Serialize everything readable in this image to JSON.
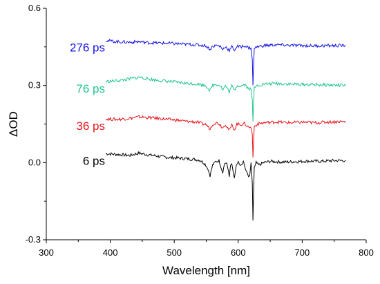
{
  "chart_data": {
    "type": "line",
    "title": "",
    "xlabel": "Wavelength [nm]",
    "ylabel": "ΔOD",
    "xlim": [
      300,
      800
    ],
    "ylim": [
      -0.3,
      0.6
    ],
    "x_ticks": [
      300,
      400,
      500,
      600,
      700,
      800
    ],
    "x_tick_labels": [
      "300",
      "400",
      "500",
      "600",
      "700",
      "800"
    ],
    "y_ticks": [
      -0.3,
      0.0,
      0.3,
      0.6
    ],
    "y_tick_labels": [
      "-0.3",
      "0.0",
      "0.3",
      "0.6"
    ],
    "grid": false,
    "legend": "inline labels at left of each trace",
    "series": [
      {
        "name": "6 ps",
        "color": "#000000",
        "points": [
          [
            393,
            0.035
          ],
          [
            410,
            0.032
          ],
          [
            430,
            0.028
          ],
          [
            445,
            0.037
          ],
          [
            460,
            0.03
          ],
          [
            475,
            0.025
          ],
          [
            490,
            0.02
          ],
          [
            505,
            0.018
          ],
          [
            520,
            0.015
          ],
          [
            530,
            0.013
          ],
          [
            540,
            0.01
          ],
          [
            548,
            -0.005
          ],
          [
            552,
            -0.02
          ],
          [
            556,
            -0.05
          ],
          [
            560,
            -0.01
          ],
          [
            565,
            0.004
          ],
          [
            570,
            0.008
          ],
          [
            576,
            -0.04
          ],
          [
            578,
            -0.005
          ],
          [
            582,
            0.0
          ],
          [
            586,
            -0.055
          ],
          [
            588,
            -0.01
          ],
          [
            590,
            -0.005
          ],
          [
            594,
            -0.06
          ],
          [
            597,
            -0.01
          ],
          [
            600,
            0.0
          ],
          [
            604,
            -0.015
          ],
          [
            608,
            0.0
          ],
          [
            612,
            -0.03
          ],
          [
            616,
            -0.055
          ],
          [
            618,
            -0.05
          ],
          [
            620,
            0.0
          ],
          [
            622,
            -0.08
          ],
          [
            623,
            -0.225
          ],
          [
            625,
            -0.02
          ],
          [
            628,
            0.0
          ],
          [
            632,
            -0.01
          ],
          [
            640,
            0.0
          ],
          [
            650,
            0.005
          ],
          [
            670,
            0.002
          ],
          [
            690,
            0.004
          ],
          [
            710,
            0.006
          ],
          [
            730,
            0.005
          ],
          [
            750,
            0.008
          ],
          [
            768,
            0.008
          ]
        ]
      },
      {
        "name": "36 ps",
        "color": "#e8141b",
        "points": [
          [
            393,
            0.17
          ],
          [
            410,
            0.168
          ],
          [
            430,
            0.172
          ],
          [
            445,
            0.178
          ],
          [
            460,
            0.175
          ],
          [
            475,
            0.172
          ],
          [
            490,
            0.168
          ],
          [
            505,
            0.165
          ],
          [
            520,
            0.16
          ],
          [
            535,
            0.158
          ],
          [
            545,
            0.15
          ],
          [
            550,
            0.148
          ],
          [
            556,
            0.13
          ],
          [
            560,
            0.15
          ],
          [
            565,
            0.155
          ],
          [
            570,
            0.152
          ],
          [
            576,
            0.135
          ],
          [
            580,
            0.15
          ],
          [
            586,
            0.125
          ],
          [
            590,
            0.145
          ],
          [
            594,
            0.128
          ],
          [
            598,
            0.15
          ],
          [
            604,
            0.148
          ],
          [
            610,
            0.152
          ],
          [
            615,
            0.14
          ],
          [
            620,
            0.135
          ],
          [
            622,
            0.11
          ],
          [
            623,
            0.02
          ],
          [
            625,
            0.14
          ],
          [
            630,
            0.15
          ],
          [
            640,
            0.155
          ],
          [
            660,
            0.158
          ],
          [
            680,
            0.155
          ],
          [
            700,
            0.157
          ],
          [
            720,
            0.155
          ],
          [
            740,
            0.158
          ],
          [
            768,
            0.16
          ]
        ]
      },
      {
        "name": "76 ps",
        "color": "#1ec58d",
        "points": [
          [
            393,
            0.315
          ],
          [
            410,
            0.318
          ],
          [
            430,
            0.325
          ],
          [
            445,
            0.332
          ],
          [
            460,
            0.325
          ],
          [
            475,
            0.32
          ],
          [
            490,
            0.316
          ],
          [
            505,
            0.312
          ],
          [
            520,
            0.308
          ],
          [
            535,
            0.306
          ],
          [
            545,
            0.302
          ],
          [
            550,
            0.298
          ],
          [
            556,
            0.28
          ],
          [
            560,
            0.3
          ],
          [
            566,
            0.305
          ],
          [
            572,
            0.3
          ],
          [
            576,
            0.282
          ],
          [
            580,
            0.3
          ],
          [
            586,
            0.275
          ],
          [
            590,
            0.298
          ],
          [
            594,
            0.28
          ],
          [
            598,
            0.3
          ],
          [
            604,
            0.298
          ],
          [
            610,
            0.305
          ],
          [
            615,
            0.29
          ],
          [
            620,
            0.285
          ],
          [
            622,
            0.245
          ],
          [
            623,
            0.16
          ],
          [
            625,
            0.29
          ],
          [
            630,
            0.3
          ],
          [
            640,
            0.305
          ],
          [
            660,
            0.308
          ],
          [
            680,
            0.305
          ],
          [
            700,
            0.304
          ],
          [
            720,
            0.303
          ],
          [
            740,
            0.302
          ],
          [
            768,
            0.3
          ]
        ]
      },
      {
        "name": "276 ps",
        "color": "#1414e6",
        "points": [
          [
            393,
            0.475
          ],
          [
            410,
            0.47
          ],
          [
            430,
            0.468
          ],
          [
            445,
            0.47
          ],
          [
            460,
            0.466
          ],
          [
            475,
            0.465
          ],
          [
            490,
            0.464
          ],
          [
            505,
            0.462
          ],
          [
            520,
            0.46
          ],
          [
            535,
            0.458
          ],
          [
            545,
            0.456
          ],
          [
            550,
            0.454
          ],
          [
            556,
            0.44
          ],
          [
            560,
            0.452
          ],
          [
            566,
            0.456
          ],
          [
            572,
            0.452
          ],
          [
            576,
            0.44
          ],
          [
            580,
            0.452
          ],
          [
            586,
            0.435
          ],
          [
            590,
            0.45
          ],
          [
            594,
            0.438
          ],
          [
            598,
            0.452
          ],
          [
            604,
            0.45
          ],
          [
            610,
            0.455
          ],
          [
            615,
            0.448
          ],
          [
            620,
            0.445
          ],
          [
            622,
            0.4
          ],
          [
            623,
            0.3
          ],
          [
            625,
            0.445
          ],
          [
            630,
            0.45
          ],
          [
            640,
            0.455
          ],
          [
            660,
            0.458
          ],
          [
            680,
            0.456
          ],
          [
            700,
            0.455
          ],
          [
            720,
            0.454
          ],
          [
            740,
            0.455
          ],
          [
            768,
            0.455
          ]
        ]
      }
    ]
  }
}
